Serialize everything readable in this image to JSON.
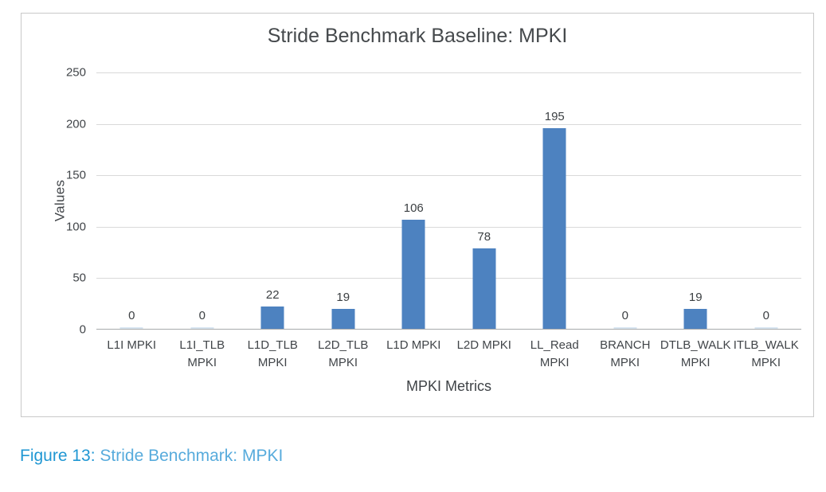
{
  "chart_data": {
    "type": "bar",
    "title": "Stride Benchmark Baseline: MPKI",
    "xlabel": "MPKI Metrics",
    "ylabel": "Values",
    "categories": [
      "L1I MPKI",
      "L1I_TLB\nMPKI",
      "L1D_TLB\nMPKI",
      "L2D_TLB\nMPKI",
      "L1D MPKI",
      "L2D MPKI",
      "LL_Read\nMPKI",
      "BRANCH\nMPKI",
      "DTLB_WALK\nMPKI",
      "ITLB_WALK\nMPKI"
    ],
    "values": [
      0,
      0,
      22,
      19,
      106,
      78,
      195,
      0,
      19,
      0
    ],
    "data_labels": [
      0,
      0,
      22,
      19,
      106,
      78,
      195,
      0,
      19,
      0
    ],
    "ylim": [
      0,
      250
    ],
    "yticks": [
      0,
      50,
      100,
      150,
      200,
      250
    ],
    "grid": true,
    "legend": "none",
    "bar_color": "#4d82c0",
    "zero_bar_color": "#d9e6f2"
  },
  "caption": {
    "figure_label": "Figure 13:",
    "title": " Stride Benchmark: MPKI"
  },
  "colors": {
    "title_text": "#45494c",
    "axis_text": "#414549",
    "gridline": "#d9d9d9",
    "axis_line": "#a8aaac",
    "chart_border": "#c9c9c9",
    "caption_label_blue": "#2097d3",
    "caption_text_blue": "#57abdc"
  }
}
